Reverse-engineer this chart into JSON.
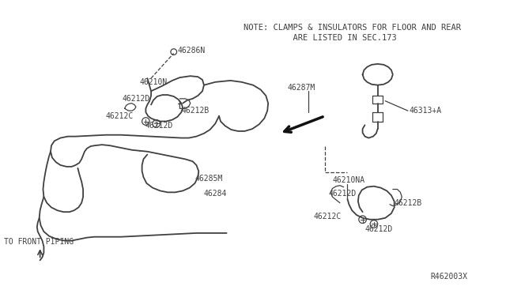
{
  "bg_color": "#ffffff",
  "line_color": "#404040",
  "text_color": "#404040",
  "fig_width": 6.4,
  "fig_height": 3.72,
  "dpi": 100,
  "note_line1": "NOTE: CLAMPS & INSULATORS FOR FLOOR AND REAR",
  "note_line2": "          ARE LISTED IN SEC.173",
  "ref_code": "R462003X",
  "front_piping_label": "TO FRONT PIPING"
}
